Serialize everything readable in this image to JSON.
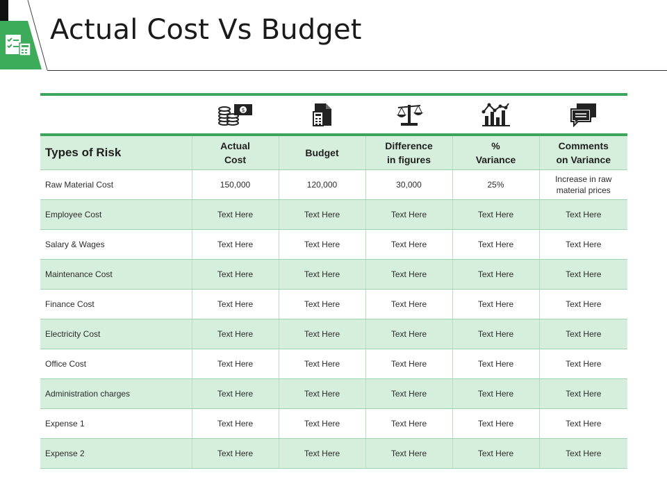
{
  "page": {
    "title": "Actual Cost Vs Budget"
  },
  "colors": {
    "accent_green": "#3da55b",
    "row_fill": "#d6efdc",
    "corner_green": "#3cab5a"
  },
  "icons": [
    "money-stack-icon",
    "calculator-document-icon",
    "scale-balance-icon",
    "bar-line-chart-icon",
    "speech-bubbles-icon"
  ],
  "table": {
    "headers": {
      "risk": "Types of Risk",
      "actual_l1": "Actual",
      "actual_l2": "Cost",
      "budget": "Budget",
      "diff_l1": "Difference",
      "diff_l2": "in figures",
      "var_l1": "%",
      "var_l2": "Variance",
      "comm_l1": "Comments",
      "comm_l2": "on Variance"
    },
    "rows": [
      {
        "type": "Raw Material Cost",
        "actual": "150,000",
        "budget": "120,000",
        "diff": "30,000",
        "variance": "25%",
        "comment_l1": "Increase in raw",
        "comment_l2": "material prices"
      },
      {
        "type": "Employee Cost",
        "actual": "Text Here",
        "budget": "Text Here",
        "diff": "Text Here",
        "variance": "Text Here",
        "comment": "Text Here"
      },
      {
        "type": "Salary & Wages",
        "actual": "Text Here",
        "budget": "Text Here",
        "diff": "Text Here",
        "variance": "Text Here",
        "comment": "Text Here"
      },
      {
        "type": "Maintenance Cost",
        "actual": "Text Here",
        "budget": "Text Here",
        "diff": "Text Here",
        "variance": "Text Here",
        "comment": "Text Here"
      },
      {
        "type": "Finance Cost",
        "actual": "Text Here",
        "budget": "Text Here",
        "diff": "Text Here",
        "variance": "Text Here",
        "comment": "Text Here"
      },
      {
        "type": "Electricity Cost",
        "actual": "Text Here",
        "budget": "Text Here",
        "diff": "Text Here",
        "variance": "Text Here",
        "comment": "Text Here"
      },
      {
        "type": "Office Cost",
        "actual": "Text Here",
        "budget": "Text Here",
        "diff": "Text Here",
        "variance": "Text Here",
        "comment": "Text Here"
      },
      {
        "type": "Administration charges",
        "actual": "Text Here",
        "budget": "Text Here",
        "diff": "Text Here",
        "variance": "Text Here",
        "comment": "Text Here"
      },
      {
        "type": "Expense 1",
        "actual": "Text Here",
        "budget": "Text Here",
        "diff": "Text Here",
        "variance": "Text Here",
        "comment": "Text Here"
      },
      {
        "type": "Expense 2",
        "actual": "Text Here",
        "budget": "Text Here",
        "diff": "Text Here",
        "variance": "Text Here",
        "comment": "Text Here"
      }
    ]
  }
}
